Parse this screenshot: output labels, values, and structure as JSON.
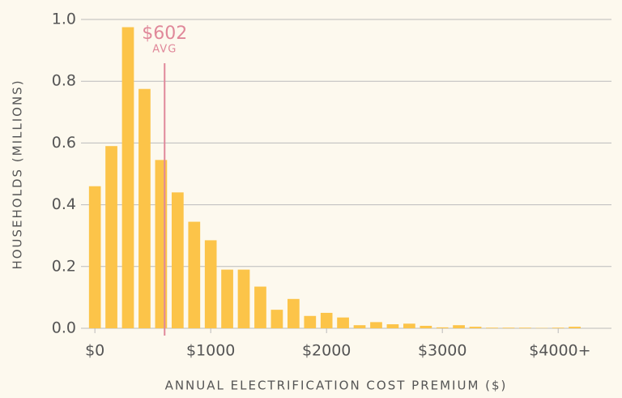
{
  "chart_data": {
    "type": "histogram",
    "xlabel": "ANNUAL ELECTRIFICATION COST PREMIUM ($)",
    "ylabel": "HOUSEHOLDS (MILLIONS)",
    "bins": [
      -71,
      71,
      214,
      357,
      500,
      643,
      786,
      929,
      1071,
      1214,
      1357,
      1500,
      1643,
      1786,
      1929,
      2071,
      2214,
      2357,
      2500,
      2643,
      2786,
      2929,
      3071,
      3214,
      3357,
      3500,
      3643,
      3786,
      3929,
      4071,
      4214
    ],
    "values": [
      0.46,
      0.59,
      0.975,
      0.775,
      0.545,
      0.44,
      0.345,
      0.285,
      0.19,
      0.19,
      0.135,
      0.06,
      0.095,
      0.04,
      0.05,
      0.035,
      0.01,
      0.02,
      0.013,
      0.015,
      0.008,
      0.003,
      0.01,
      0.005,
      0.002,
      0.002,
      0.002,
      0.001,
      0.002,
      0.005
    ],
    "color": "#fcc449",
    "xlim": [
      -120,
      4460
    ],
    "ylim": [
      0,
      1.0
    ],
    "xticks": [
      {
        "value": 0,
        "label": "$0"
      },
      {
        "value": 1000,
        "label": "$1000"
      },
      {
        "value": 2000,
        "label": "$2000"
      },
      {
        "value": 3000,
        "label": "$3000"
      },
      {
        "value": 4000,
        "label": "$4000+"
      }
    ],
    "yticks": [
      {
        "value": 0,
        "label": "0.0"
      },
      {
        "value": 0.2,
        "label": "0.2"
      },
      {
        "value": 0.4,
        "label": "0.4"
      },
      {
        "value": 0.6,
        "label": "0.6"
      },
      {
        "value": 0.8,
        "label": "0.8"
      },
      {
        "value": 1.0,
        "label": "1.0"
      }
    ],
    "grid": true,
    "annotations": [
      {
        "x": 602,
        "label": "$602",
        "sublabel": "AVG",
        "color": "#e0889a"
      }
    ]
  }
}
